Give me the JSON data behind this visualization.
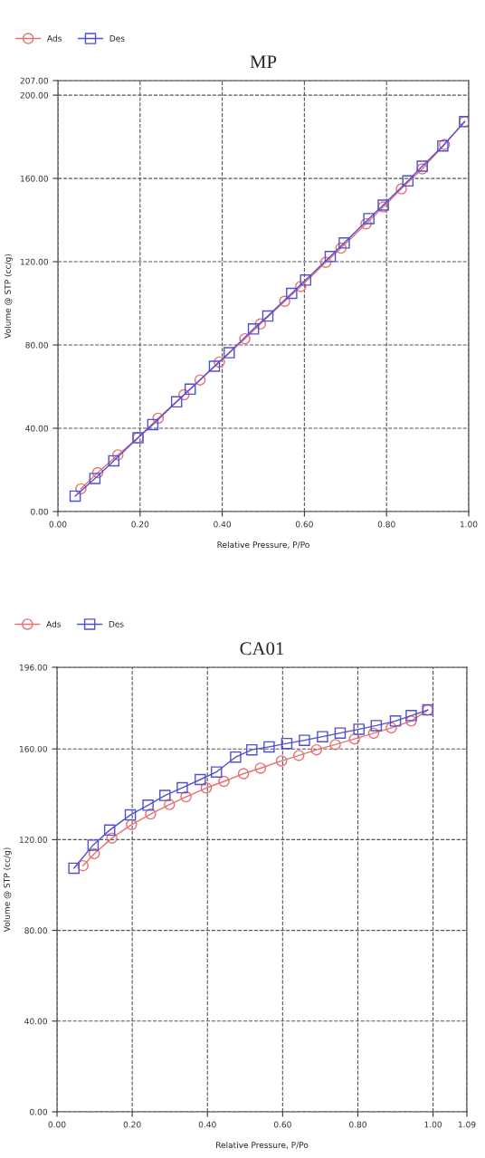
{
  "chart_data": [
    {
      "type": "line",
      "title": "MP",
      "xlabel": "Relative Pressure, P/Po",
      "ylabel": "Volume @ STP (cc/g)",
      "xlim": [
        0,
        1.0
      ],
      "xticks": [
        {
          "value": 0,
          "label": "0.00"
        },
        {
          "value": 0.2,
          "label": "0.20"
        },
        {
          "value": 0.4,
          "label": "0.40"
        },
        {
          "value": 0.6,
          "label": "0.60"
        },
        {
          "value": 0.8,
          "label": "0.80"
        },
        {
          "value": 1.0,
          "label": "1.00"
        }
      ],
      "ylim": [
        0,
        207
      ],
      "yticks": [
        {
          "value": 0,
          "label": "0.00"
        },
        {
          "value": 40,
          "label": "40.00"
        },
        {
          "value": 80,
          "label": "80.00"
        },
        {
          "value": 120,
          "label": "120.00"
        },
        {
          "value": 160,
          "label": "160.00"
        },
        {
          "value": 200,
          "label": "200.00"
        },
        {
          "value": 207,
          "label": "207.00"
        }
      ],
      "grid": true,
      "legend": "top left",
      "line_style": "solid",
      "series": [
        {
          "name": "Ads",
          "color": "#e87070",
          "marker": "circle",
          "x": [
            0.056,
            0.097,
            0.146,
            0.195,
            0.244,
            0.307,
            0.346,
            0.393,
            0.455,
            0.493,
            0.552,
            0.591,
            0.652,
            0.689,
            0.75,
            0.792,
            0.836,
            0.887,
            0.941,
            0.99
          ],
          "values": [
            10.9,
            18.7,
            27.2,
            35.4,
            44.8,
            56.1,
            63.2,
            71.8,
            83.0,
            90.1,
            101.0,
            108.1,
            119.7,
            126.5,
            138.2,
            146.3,
            155.0,
            164.6,
            176.3,
            187.3
          ]
        },
        {
          "name": "Des",
          "color": "#5050d0",
          "marker": "square",
          "x": [
            0.042,
            0.09,
            0.136,
            0.195,
            0.231,
            0.289,
            0.322,
            0.381,
            0.417,
            0.476,
            0.511,
            0.569,
            0.603,
            0.663,
            0.697,
            0.757,
            0.792,
            0.852,
            0.887,
            0.937,
            0.99
          ],
          "values": [
            7.4,
            15.9,
            24.4,
            35.4,
            41.8,
            52.7,
            58.8,
            69.8,
            76.3,
            87.7,
            93.9,
            104.8,
            111.2,
            122.5,
            129.0,
            140.7,
            147.2,
            158.8,
            165.9,
            175.6,
            187.3
          ]
        }
      ]
    },
    {
      "type": "line",
      "title": "CA01",
      "xlabel": "Relative Pressure, P/Po",
      "ylabel": "Volume @ STP (cc/g)",
      "xlim": [
        0,
        1.09
      ],
      "xticks": [
        {
          "value": 0,
          "label": "0.00"
        },
        {
          "value": 0.2,
          "label": "0.20"
        },
        {
          "value": 0.4,
          "label": "0.40"
        },
        {
          "value": 0.6,
          "label": "0.60"
        },
        {
          "value": 0.8,
          "label": "0.80"
        },
        {
          "value": 1.0,
          "label": "1.00"
        },
        {
          "value": 1.09,
          "label": "1.09"
        }
      ],
      "ylim": [
        0,
        196
      ],
      "yticks": [
        {
          "value": 0,
          "label": "0.00"
        },
        {
          "value": 40,
          "label": "40.00"
        },
        {
          "value": 80,
          "label": "80.00"
        },
        {
          "value": 120,
          "label": "120.00"
        },
        {
          "value": 160,
          "label": "160.00"
        },
        {
          "value": 196,
          "label": "196.00"
        }
      ],
      "grid": true,
      "legend": "top left",
      "line_style": "solid",
      "series": [
        {
          "name": "Ads",
          "color": "#e87070",
          "marker": "circle",
          "x": [
            0.069,
            0.099,
            0.146,
            0.198,
            0.249,
            0.299,
            0.343,
            0.397,
            0.444,
            0.496,
            0.541,
            0.597,
            0.643,
            0.69,
            0.74,
            0.791,
            0.842,
            0.889,
            0.942,
            0.986
          ],
          "values": [
            108.5,
            113.8,
            120.7,
            126.6,
            131.3,
            135.5,
            138.9,
            142.8,
            145.7,
            149.1,
            151.5,
            154.7,
            157.1,
            159.6,
            161.9,
            164.4,
            166.9,
            169.3,
            172.3,
            177.2
          ]
        },
        {
          "name": "Des",
          "color": "#5050d0",
          "marker": "square",
          "x": [
            0.045,
            0.096,
            0.14,
            0.195,
            0.242,
            0.287,
            0.333,
            0.381,
            0.424,
            0.475,
            0.518,
            0.564,
            0.611,
            0.658,
            0.706,
            0.753,
            0.803,
            0.849,
            0.9,
            0.942,
            0.986
          ],
          "values": [
            107.4,
            117.6,
            124.2,
            130.9,
            135.2,
            139.5,
            142.9,
            146.5,
            149.8,
            156.4,
            159.6,
            160.9,
            162.4,
            163.8,
            165.4,
            167.0,
            168.7,
            170.3,
            172.3,
            174.7,
            177.2
          ]
        }
      ]
    }
  ]
}
